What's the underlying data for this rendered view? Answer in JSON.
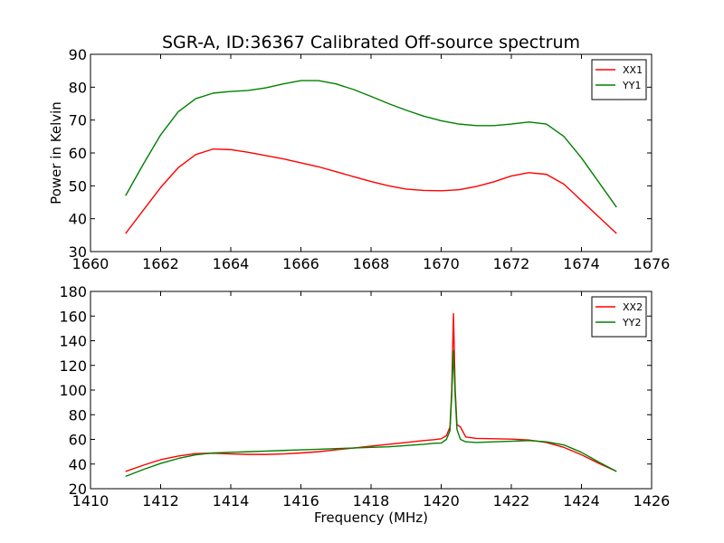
{
  "title": "SGR-A, ID:36367 Calibrated Off-source spectrum",
  "chart_data": [
    {
      "type": "line",
      "title": "SGR-A, ID:36367 Calibrated Off-source spectrum",
      "xlabel": "",
      "ylabel": "Power in Kelvin",
      "xlim": [
        1660,
        1676
      ],
      "ylim": [
        30,
        90
      ],
      "xticks": [
        "1660",
        "1662",
        "1664",
        "1666",
        "1668",
        "1670",
        "1672",
        "1674",
        "1676"
      ],
      "yticks": [
        "30",
        "40",
        "50",
        "60",
        "70",
        "80",
        "90"
      ],
      "legend_position": "top-right",
      "series": [
        {
          "name": "XX1",
          "color": "#ff0000",
          "x": [
            1661.0,
            1661.5,
            1662.0,
            1662.5,
            1663.0,
            1663.5,
            1664.0,
            1664.5,
            1665.0,
            1665.5,
            1666.0,
            1666.5,
            1667.0,
            1667.5,
            1668.0,
            1668.5,
            1669.0,
            1669.5,
            1670.0,
            1670.5,
            1671.0,
            1671.5,
            1672.0,
            1672.5,
            1673.0,
            1673.5,
            1674.0,
            1674.5,
            1675.0
          ],
          "y": [
            35.5,
            42.5,
            49.5,
            55.5,
            59.5,
            61.2,
            61.0,
            60.2,
            59.2,
            58.2,
            57.0,
            55.8,
            54.3,
            52.8,
            51.3,
            50.0,
            49.0,
            48.6,
            48.5,
            48.8,
            49.8,
            51.2,
            53.0,
            54.0,
            53.5,
            50.5,
            45.5,
            40.5,
            35.5
          ]
        },
        {
          "name": "YY1",
          "color": "#008000",
          "x": [
            1661.0,
            1661.5,
            1662.0,
            1662.5,
            1663.0,
            1663.5,
            1664.0,
            1664.5,
            1665.0,
            1665.5,
            1666.0,
            1666.5,
            1667.0,
            1667.5,
            1668.0,
            1668.5,
            1669.0,
            1669.5,
            1670.0,
            1670.5,
            1671.0,
            1671.5,
            1672.0,
            1672.5,
            1673.0,
            1673.5,
            1674.0,
            1674.5,
            1675.0
          ],
          "y": [
            47.0,
            56.5,
            65.5,
            72.5,
            76.5,
            78.2,
            78.7,
            79.0,
            79.8,
            81.0,
            82.0,
            82.0,
            81.0,
            79.3,
            77.2,
            75.0,
            73.0,
            71.2,
            69.8,
            68.8,
            68.3,
            68.3,
            68.8,
            69.4,
            68.8,
            65.0,
            58.5,
            51.0,
            43.5
          ]
        }
      ]
    },
    {
      "type": "line",
      "title": "",
      "xlabel": "Frequency (MHz)",
      "ylabel": "",
      "xlim": [
        1410,
        1426
      ],
      "ylim": [
        20,
        180
      ],
      "xticks": [
        "1410",
        "1412",
        "1414",
        "1416",
        "1418",
        "1420",
        "1422",
        "1424",
        "1426"
      ],
      "yticks": [
        "20",
        "40",
        "60",
        "80",
        "100",
        "120",
        "140",
        "160",
        "180"
      ],
      "legend_position": "top-right",
      "series": [
        {
          "name": "XX2",
          "color": "#ff0000",
          "x": [
            1411.0,
            1411.5,
            1412.0,
            1412.5,
            1413.0,
            1413.5,
            1414.0,
            1414.5,
            1415.0,
            1415.5,
            1416.0,
            1416.5,
            1417.0,
            1417.5,
            1418.0,
            1418.5,
            1419.0,
            1419.5,
            1419.8,
            1420.0,
            1420.15,
            1420.25,
            1420.3,
            1420.35,
            1420.4,
            1420.45,
            1420.55,
            1420.7,
            1421.0,
            1421.5,
            1422.0,
            1422.5,
            1423.0,
            1423.5,
            1424.0,
            1424.5,
            1425.0
          ],
          "y": [
            34.0,
            39.0,
            43.5,
            46.5,
            48.5,
            48.8,
            48.2,
            47.8,
            47.8,
            48.2,
            49.0,
            50.0,
            51.5,
            53.0,
            54.5,
            56.0,
            57.5,
            59.0,
            59.8,
            60.5,
            63.0,
            70.0,
            100.0,
            162.0,
            100.0,
            72.0,
            70.0,
            62.0,
            60.8,
            60.5,
            60.2,
            59.5,
            57.5,
            53.5,
            47.5,
            40.5,
            34.0
          ]
        },
        {
          "name": "YY2",
          "color": "#008000",
          "x": [
            1411.0,
            1411.5,
            1412.0,
            1412.5,
            1413.0,
            1413.5,
            1414.0,
            1414.5,
            1415.0,
            1415.5,
            1416.0,
            1416.5,
            1417.0,
            1417.5,
            1418.0,
            1418.5,
            1419.0,
            1419.5,
            1419.8,
            1420.0,
            1420.15,
            1420.25,
            1420.3,
            1420.35,
            1420.4,
            1420.45,
            1420.55,
            1420.7,
            1421.0,
            1421.5,
            1422.0,
            1422.5,
            1423.0,
            1423.5,
            1424.0,
            1424.5,
            1425.0
          ],
          "y": [
            30.0,
            35.5,
            40.5,
            44.5,
            47.5,
            49.0,
            49.5,
            50.0,
            50.5,
            51.0,
            51.5,
            52.0,
            52.5,
            53.0,
            53.5,
            54.0,
            55.0,
            56.0,
            56.8,
            57.0,
            60.0,
            67.0,
            95.0,
            132.0,
            95.0,
            68.0,
            60.0,
            58.0,
            57.5,
            58.0,
            58.5,
            59.0,
            58.0,
            55.5,
            49.5,
            41.5,
            34.0
          ]
        }
      ]
    }
  ]
}
